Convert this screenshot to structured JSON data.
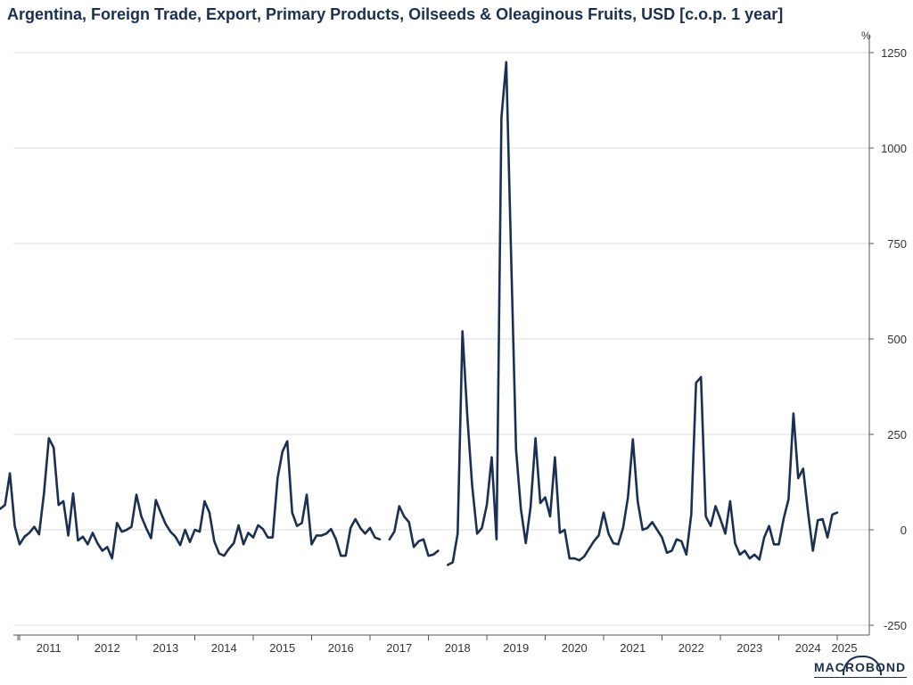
{
  "chart_data": {
    "type": "line",
    "title": "Argentina, Foreign Trade, Export, Primary Products, Oilseeds & Oleaginous Fruits, USD [c.o.p. 1 year]",
    "ylabel": "%",
    "xlabel": "",
    "ylim": [
      -260,
      1260
    ],
    "yticks": [
      "1250",
      "1000",
      "750",
      "500",
      "250",
      "0",
      "-250"
    ],
    "ytick_values": [
      1250,
      1000,
      750,
      500,
      250,
      0,
      -250
    ],
    "xlim": [
      "2010-09",
      "2025-03"
    ],
    "xticks": [
      "2011",
      "2012",
      "2013",
      "2014",
      "2015",
      "2016",
      "2017",
      "2018",
      "2019",
      "2020",
      "2021",
      "2022",
      "2023",
      "2024",
      "2025"
    ],
    "grid": true,
    "line_color": "#1a2f52",
    "series": [
      {
        "name": "",
        "start": "2010-09",
        "values": [
          55,
          65,
          148,
          10,
          -38,
          -18,
          -8,
          8,
          -12,
          95,
          240,
          215,
          65,
          75,
          -15,
          95,
          -28,
          -18,
          -38,
          -8,
          -35,
          -55,
          -45,
          -75,
          18,
          -5,
          0,
          8,
          92,
          35,
          5,
          -22,
          78,
          45,
          15,
          -5,
          -18,
          -40,
          0,
          -32,
          0,
          -5,
          75,
          45,
          -30,
          -62,
          -68,
          -50,
          -35,
          12,
          -38,
          -8,
          -20,
          12,
          2,
          -20,
          -20,
          135,
          205,
          232,
          45,
          10,
          18,
          92,
          -38,
          -15,
          -15,
          -10,
          2,
          -25,
          -68,
          -68,
          5,
          28,
          5,
          -10,
          5,
          -20,
          -25,
          null,
          -25,
          -5,
          62,
          35,
          20,
          -45,
          -30,
          -25,
          -68,
          -65,
          -55,
          null,
          -92,
          -85,
          -10,
          520,
          295,
          115,
          -10,
          5,
          65,
          190,
          -25,
          1080,
          1225,
          715,
          210,
          55,
          -35,
          60,
          240,
          70,
          85,
          35,
          190,
          -8,
          0,
          -75,
          -75,
          -80,
          -70,
          -50,
          -30,
          -15,
          45,
          -10,
          -35,
          -38,
          5,
          85,
          237,
          75,
          0,
          5,
          20,
          0,
          -20,
          -60,
          -55,
          -25,
          -30,
          -65,
          40,
          385,
          400,
          35,
          10,
          62,
          28,
          -10,
          75,
          -35,
          -65,
          -55,
          -75,
          -65,
          -78,
          -20,
          10,
          -38,
          -38,
          30,
          80,
          305,
          135,
          160,
          45,
          -55,
          25,
          28,
          -20,
          40,
          45
        ]
      }
    ]
  },
  "branding": {
    "logo_text": "MACROBOND"
  }
}
